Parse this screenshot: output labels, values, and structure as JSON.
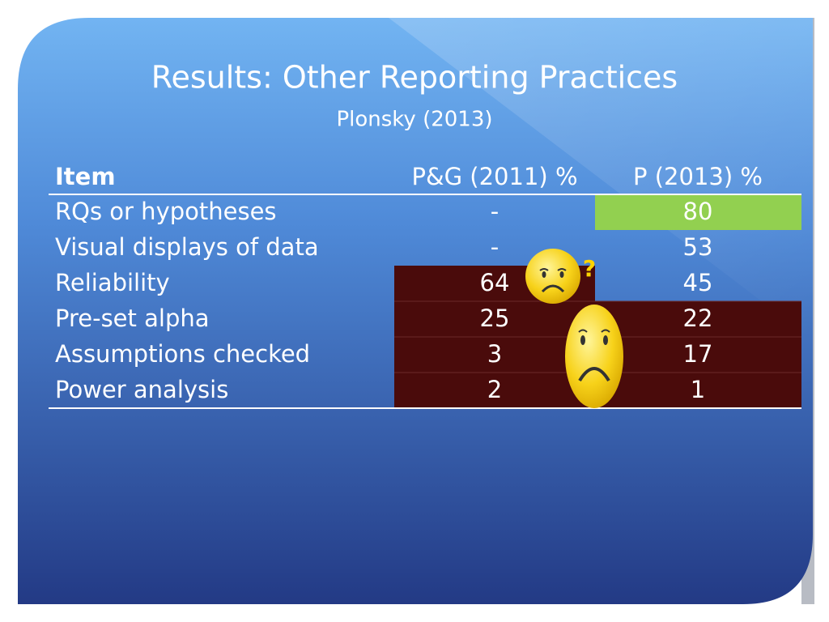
{
  "title": "Results: Other Reporting Practices",
  "subtitle": "Plonsky (2013)",
  "table": {
    "header": [
      "Item",
      "P&G (2011) %",
      "P (2013) %"
    ],
    "rows": [
      [
        "RQs or hypotheses",
        "-",
        80
      ],
      [
        "Visual displays of data",
        "-",
        53
      ],
      [
        "Reliability",
        64,
        45
      ],
      [
        "Pre-set alpha",
        25,
        22
      ],
      [
        "Assumptions checked",
        3,
        17
      ],
      [
        "Power analysis",
        2,
        1
      ]
    ]
  },
  "annotation": "?"
}
